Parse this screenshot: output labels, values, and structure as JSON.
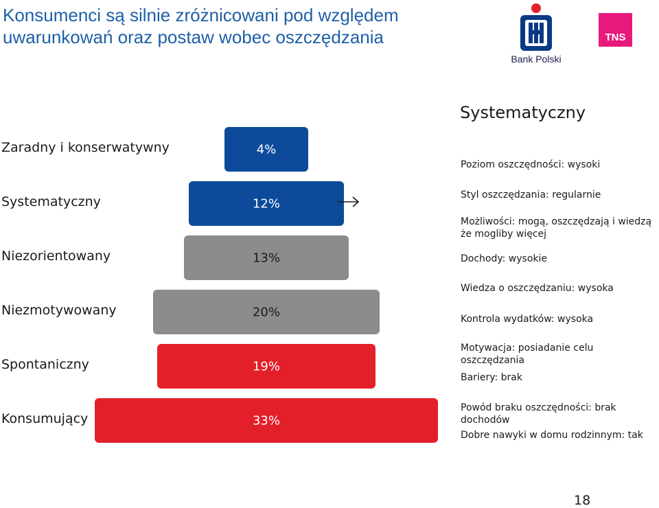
{
  "header": {
    "title_line1": "Konsumenci są silnie zróżnicowani pod względem",
    "title_line2": "uwarunkowań oraz postaw wobec oszczędzania"
  },
  "logos": {
    "pko_label": "Bank Polski",
    "pko_color": "#0a3a84",
    "pko_accent": "#e3202a",
    "tns_text": "TNS",
    "tns_color": "#e8197d"
  },
  "chart_data": {
    "type": "bar",
    "categories": [
      "Zaradny i konserwatywny",
      "Systematyczny",
      "Niezorientowany",
      "Niezmotywowany",
      "Spontaniczny",
      "Konsumujący"
    ],
    "values": [
      4,
      12,
      13,
      20,
      19,
      33
    ],
    "value_labels": [
      "4%",
      "12%",
      "13%",
      "20%",
      "19%",
      "33%"
    ],
    "colors": [
      "#0d4b9a",
      "#0d4b9a",
      "#8c8c8c",
      "#8c8c8c",
      "#e3202a",
      "#e3202a"
    ],
    "highlighted": "Systematyczny"
  },
  "panel": {
    "title": "Systematyczny",
    "details": [
      "Poziom oszczędności: wysoki",
      "Styl oszczędzania: regularnie",
      "Możliwości: mogą, oszczędzają i wiedzą że mogliby więcej",
      "Dochody: wysokie",
      "Wiedza o oszczędzaniu: wysoka",
      "Kontrola wydatków: wysoka",
      "Motywacja: posiadanie celu oszczędzania",
      "Bariery: brak",
      "Powód braku oszczędności: brak dochodów",
      "Dobre nawyki w domu rodzinnym: tak"
    ]
  },
  "footer": {
    "page_number": "18"
  }
}
